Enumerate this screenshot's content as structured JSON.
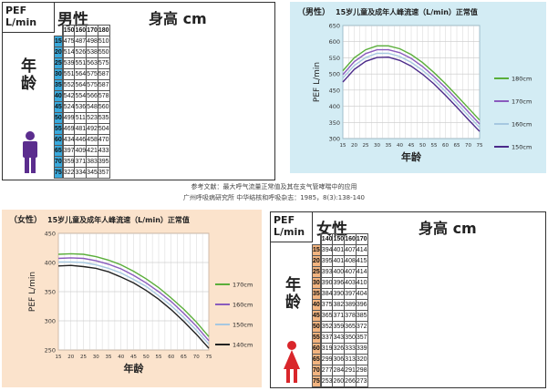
{
  "male_table": {
    "corner_top": "PEF",
    "corner_bottom": "L/min",
    "gender": "男性",
    "height_header": "身高 cm",
    "age_label": "年龄",
    "heights": [
      "150",
      "160",
      "170",
      "180"
    ],
    "ages": [
      "15",
      "20",
      "25",
      "30",
      "35",
      "40",
      "45",
      "50",
      "55",
      "60",
      "65",
      "70",
      "75"
    ],
    "rows": [
      [
        "475",
        "487",
        "498",
        "510"
      ],
      [
        "514",
        "526",
        "538",
        "550"
      ],
      [
        "539",
        "551",
        "563",
        "575"
      ],
      [
        "551",
        "564",
        "575",
        "587"
      ],
      [
        "552",
        "564",
        "575",
        "587"
      ],
      [
        "542",
        "554",
        "566",
        "578"
      ],
      [
        "524",
        "536",
        "548",
        "560"
      ],
      [
        "499",
        "511",
        "523",
        "535"
      ],
      [
        "469",
        "481",
        "492",
        "504"
      ],
      [
        "434",
        "446",
        "458",
        "470"
      ],
      [
        "397",
        "409",
        "421",
        "433"
      ],
      [
        "359",
        "371",
        "383",
        "395"
      ],
      [
        "322",
        "334",
        "345",
        "357"
      ]
    ],
    "figure_color": "#5b2d8e"
  },
  "female_table": {
    "corner_top": "PEF",
    "corner_bottom": "L/min",
    "gender": "女性",
    "height_header": "身高 cm",
    "age_label": "年龄",
    "heights": [
      "140",
      "150",
      "160",
      "170"
    ],
    "ages": [
      "15",
      "20",
      "25",
      "30",
      "35",
      "40",
      "45",
      "50",
      "55",
      "60",
      "65",
      "70",
      "75"
    ],
    "rows": [
      [
        "394",
        "401",
        "407",
        "414"
      ],
      [
        "395",
        "401",
        "408",
        "415"
      ],
      [
        "393",
        "400",
        "407",
        "414"
      ],
      [
        "390",
        "396",
        "403",
        "410"
      ],
      [
        "384",
        "390",
        "397",
        "404"
      ],
      [
        "375",
        "382",
        "389",
        "396"
      ],
      [
        "365",
        "371",
        "378",
        "385"
      ],
      [
        "352",
        "359",
        "365",
        "372"
      ],
      [
        "337",
        "343",
        "350",
        "357"
      ],
      [
        "319",
        "326",
        "333",
        "339"
      ],
      [
        "299",
        "306",
        "313",
        "320"
      ],
      [
        "277",
        "284",
        "291",
        "298"
      ],
      [
        "253",
        "260",
        "266",
        "273"
      ]
    ],
    "figure_color": "#d9262b"
  },
  "reference": {
    "line1": "参考文献：最大呼气流量正常值及其在支气管哮喘中的应用",
    "line2": "广州呼吸病研究所  中华结核和呼吸杂志：1985，8(3):138-140"
  },
  "chart_data": [
    {
      "type": "line",
      "title_gender": "（男性）",
      "title": "15岁儿童及成年人峰流速（L/min）正常值",
      "xlabel": "年龄",
      "ylabel": "PEF  L/min",
      "x": [
        15,
        20,
        25,
        30,
        35,
        40,
        45,
        50,
        55,
        60,
        65,
        70,
        75
      ],
      "x_ticks": [
        "15",
        "20",
        "25",
        "30",
        "35",
        "40",
        "45",
        "50",
        "55",
        "60",
        "65",
        "70",
        "75"
      ],
      "y_ticks": [
        "300",
        "350",
        "400",
        "450",
        "500",
        "550",
        "600",
        "650"
      ],
      "ylim": [
        300,
        650
      ],
      "series": [
        {
          "name": "180cm",
          "color": "#5aae3a",
          "values": [
            510,
            550,
            575,
            587,
            587,
            578,
            560,
            535,
            504,
            470,
            433,
            395,
            357
          ]
        },
        {
          "name": "170cm",
          "color": "#8a5bbd",
          "values": [
            498,
            538,
            563,
            575,
            575,
            566,
            548,
            523,
            492,
            458,
            421,
            383,
            345
          ]
        },
        {
          "name": "160cm",
          "color": "#a6c8e0",
          "values": [
            487,
            526,
            551,
            564,
            564,
            554,
            536,
            511,
            481,
            446,
            409,
            371,
            334
          ]
        },
        {
          "name": "150cm",
          "color": "#4b2a8a",
          "values": [
            475,
            514,
            539,
            551,
            552,
            542,
            524,
            499,
            469,
            434,
            397,
            359,
            322
          ]
        }
      ]
    },
    {
      "type": "line",
      "title_gender": "（女性）",
      "title": "15岁儿童及成年人峰流速（L/min）正常值",
      "xlabel": "年龄",
      "ylabel": "PEF  L/min",
      "x": [
        15,
        20,
        25,
        30,
        35,
        40,
        45,
        50,
        55,
        60,
        65,
        70,
        75
      ],
      "x_ticks": [
        "15",
        "20",
        "25",
        "30",
        "35",
        "40",
        "45",
        "50",
        "55",
        "60",
        "65",
        "70",
        "75"
      ],
      "y_ticks": [
        "250",
        "300",
        "350",
        "400",
        "450"
      ],
      "ylim": [
        250,
        450
      ],
      "series": [
        {
          "name": "170cm",
          "color": "#5aae3a",
          "values": [
            414,
            415,
            414,
            410,
            404,
            396,
            385,
            372,
            357,
            339,
            320,
            298,
            273
          ]
        },
        {
          "name": "160cm",
          "color": "#8a5bbd",
          "values": [
            407,
            408,
            407,
            403,
            397,
            389,
            378,
            365,
            350,
            333,
            313,
            291,
            266
          ]
        },
        {
          "name": "150cm",
          "color": "#a6c8e0",
          "values": [
            401,
            401,
            400,
            396,
            390,
            382,
            371,
            359,
            343,
            326,
            306,
            284,
            260
          ]
        },
        {
          "name": "140cm",
          "color": "#222222",
          "values": [
            394,
            395,
            393,
            390,
            384,
            375,
            365,
            352,
            337,
            319,
            299,
            277,
            253
          ]
        }
      ]
    }
  ]
}
